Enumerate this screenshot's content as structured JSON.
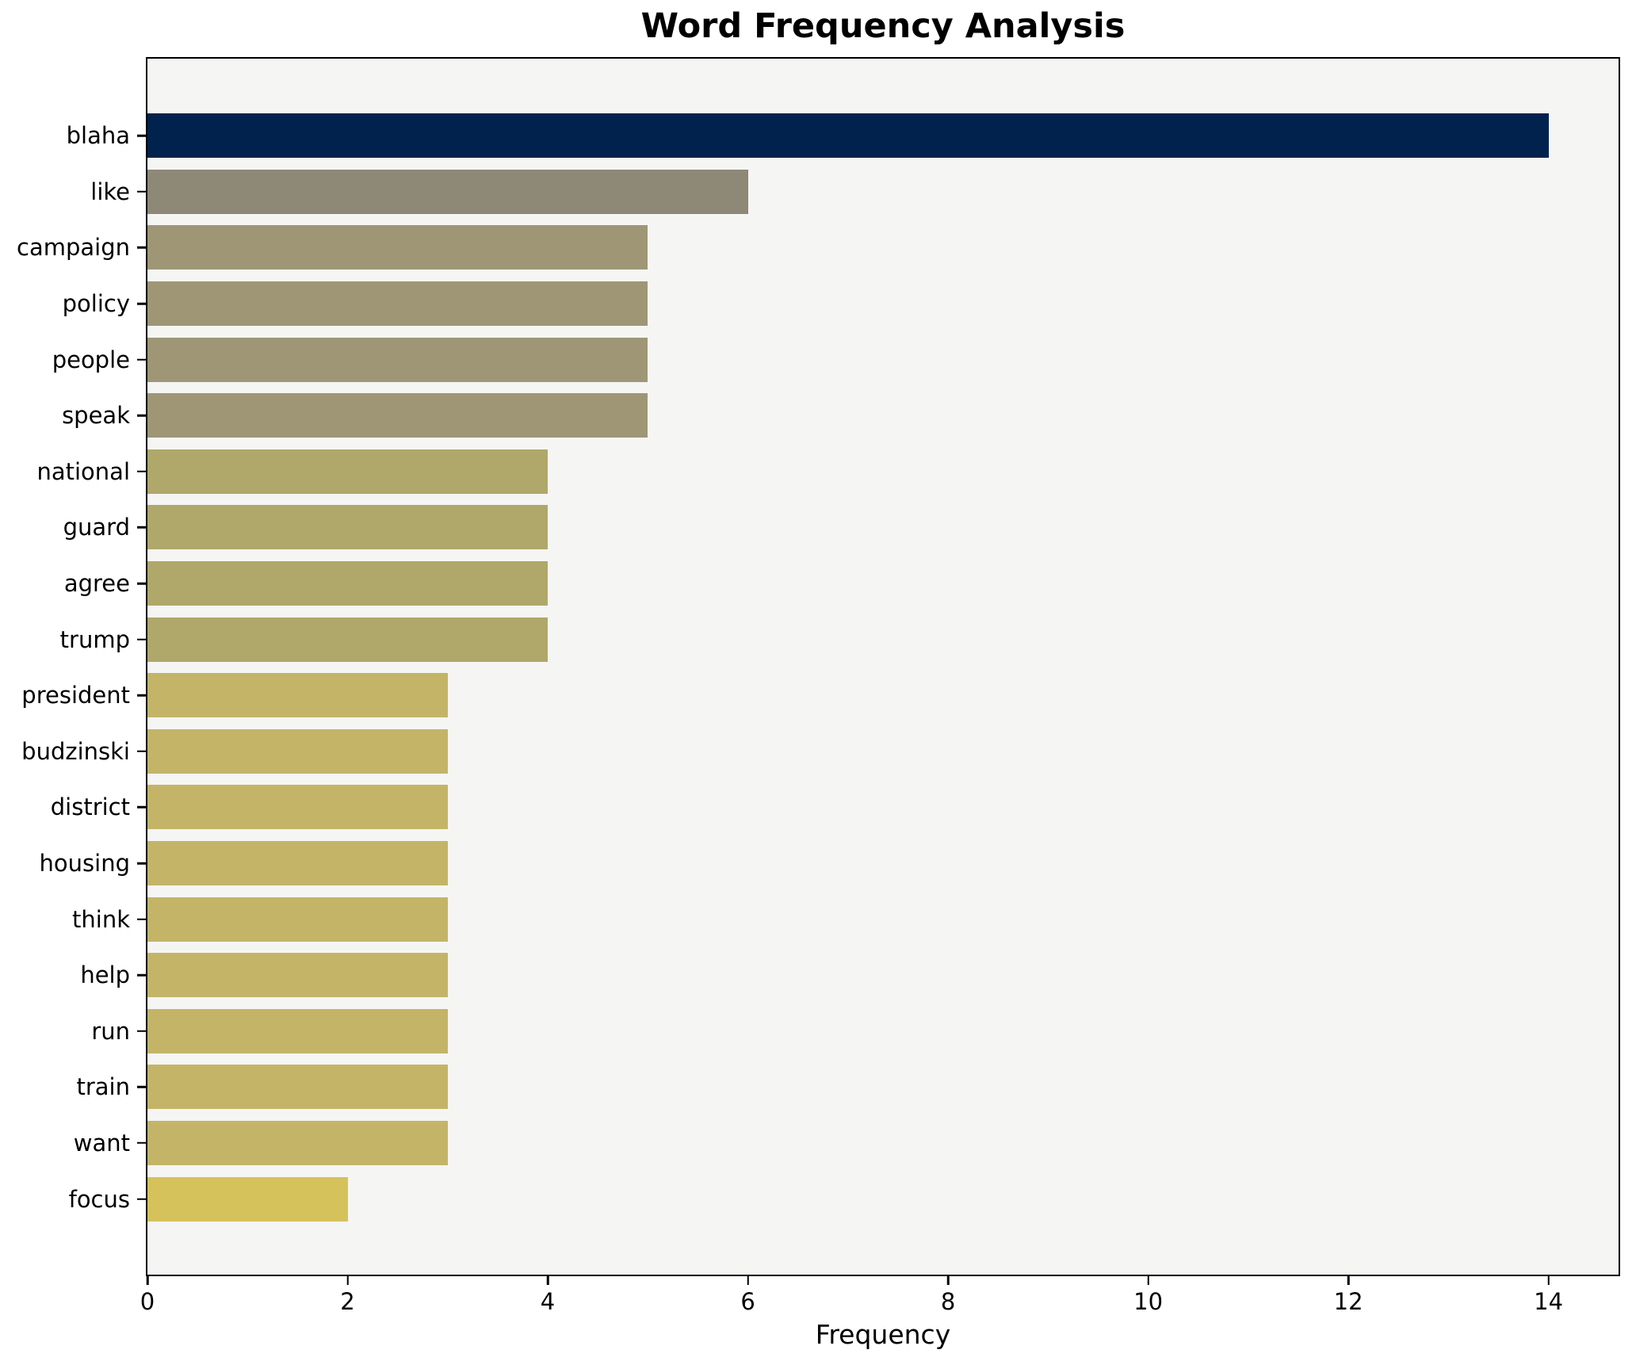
{
  "title": "Word Frequency Analysis",
  "chart_data": {
    "type": "bar",
    "orientation": "horizontal",
    "title": "Word Frequency Analysis",
    "xlabel": "Frequency",
    "ylabel": "",
    "categories": [
      "blaha",
      "like",
      "campaign",
      "policy",
      "people",
      "speak",
      "national",
      "guard",
      "agree",
      "trump",
      "president",
      "budzinski",
      "district",
      "housing",
      "think",
      "help",
      "run",
      "train",
      "want",
      "focus"
    ],
    "values": [
      14,
      6,
      5,
      5,
      5,
      5,
      4,
      4,
      4,
      4,
      3,
      3,
      3,
      3,
      3,
      3,
      3,
      3,
      3,
      2
    ],
    "bar_colors": [
      "#01224d",
      "#8e8877",
      "#9e9675",
      "#9e9675",
      "#9e9675",
      "#9e9675",
      "#b0a76a",
      "#b0a76a",
      "#b0a76a",
      "#b0a76a",
      "#c4b468",
      "#c4b468",
      "#c4b468",
      "#c4b468",
      "#c4b468",
      "#c4b468",
      "#c4b468",
      "#c4b468",
      "#c4b468",
      "#d5c25b"
    ],
    "xlim": [
      0,
      14.7
    ],
    "xticks": [
      0,
      2,
      4,
      6,
      8,
      10,
      12,
      14
    ],
    "grid": false,
    "legend": "none",
    "plot_background": "#f5f5f3",
    "figure_background": "#ffffff",
    "spine_color": "#000000"
  }
}
